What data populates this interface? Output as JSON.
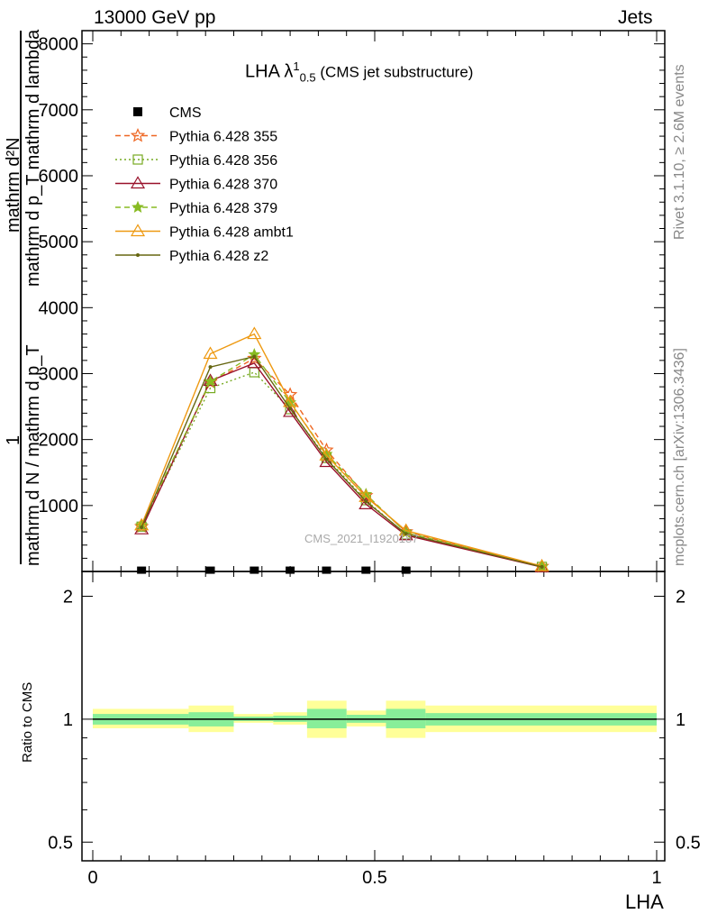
{
  "header": {
    "left": "13000 GeV pp",
    "right": "Jets"
  },
  "side_labels": {
    "rivet": "Rivet 3.1.10, ≥ 2.6M events",
    "mcplots": "mcplots.cern.ch [arXiv:1306.3436]"
  },
  "title": {
    "main": "LHA λ",
    "sup": "1",
    "sub": "0.5",
    "rest": " (CMS jet substructure)"
  },
  "watermark": "CMS_2021_I1920187",
  "y_labels": {
    "main_top": "mathrm d²N",
    "main_top2": "mathrm d p_T mathrm d lambda",
    "main_bottom": "mathrm d N / mathrm d p_T",
    "one": "1",
    "ratio": "Ratio to CMS"
  },
  "x_label": "LHA",
  "chart_data": {
    "type": "line",
    "x": [
      0.0865,
      0.2085,
      0.2865,
      0.35,
      0.4145,
      0.4845,
      0.5555,
      0.7965
    ],
    "xlim": [
      0,
      1
    ],
    "ylim": [
      0,
      8200
    ],
    "yticks": [
      "1000",
      "2000",
      "3000",
      "4000",
      "5000",
      "6000",
      "7000",
      "8000"
    ],
    "ratio_ylim": [
      0.45,
      2.3
    ],
    "ratio_yticks": [
      "0.5",
      "1",
      "2"
    ],
    "xticks": [
      "0",
      "0.5",
      "1"
    ],
    "legend": [
      {
        "name": "CMS"
      },
      {
        "name": "Pythia 6.428 355"
      },
      {
        "name": "Pythia 6.428 356"
      },
      {
        "name": "Pythia 6.428 370"
      },
      {
        "name": "Pythia 6.428 379"
      },
      {
        "name": "Pythia 6.428 ambt1"
      },
      {
        "name": "Pythia 6.428 z2"
      }
    ],
    "cms": {
      "x": [
        0.0865,
        0.2085,
        0.2865,
        0.35,
        0.4145,
        0.4845,
        0.5555
      ],
      "values": [
        6,
        6,
        6,
        6,
        6,
        6,
        6
      ]
    },
    "series": [
      {
        "name": "Pythia 6.428 355",
        "color": "#ee6622",
        "dash": "6,4",
        "marker": "star-open",
        "values": [
          680,
          2870,
          3230,
          2680,
          1840,
          1150,
          600,
          75
        ]
      },
      {
        "name": "Pythia 6.428 356",
        "color": "#77aa22",
        "dash": "2,3",
        "marker": "square-open",
        "values": [
          680,
          2780,
          3020,
          2460,
          1720,
          1080,
          560,
          70
        ]
      },
      {
        "name": "Pythia 6.428 370",
        "color": "#99112a",
        "dash": "",
        "marker": "triangle-open",
        "values": [
          640,
          2890,
          3160,
          2420,
          1660,
          1020,
          550,
          65
        ]
      },
      {
        "name": "Pythia 6.428 379",
        "color": "#88bb22",
        "dash": "6,4",
        "marker": "star-filled",
        "values": [
          700,
          2880,
          3290,
          2560,
          1780,
          1170,
          590,
          75
        ]
      },
      {
        "name": "Pythia 6.428 ambt1",
        "color": "#ee9911",
        "dash": "",
        "marker": "triangle-open",
        "values": [
          700,
          3300,
          3600,
          2570,
          1760,
          1130,
          620,
          80
        ]
      },
      {
        "name": "Pythia 6.428 z2",
        "color": "#666611",
        "dash": "",
        "marker": "dot",
        "values": [
          670,
          3100,
          3260,
          2470,
          1700,
          1060,
          570,
          70
        ]
      }
    ],
    "ratio_bands": {
      "edges": [
        0,
        0.17,
        0.25,
        0.32,
        0.38,
        0.45,
        0.52,
        0.59,
        1.0
      ],
      "yellow_low": [
        0.95,
        0.93,
        0.98,
        0.97,
        0.9,
        0.96,
        0.9,
        0.93
      ],
      "yellow_high": [
        1.06,
        1.08,
        1.03,
        1.04,
        1.11,
        1.05,
        1.11,
        1.08
      ],
      "green_low": [
        0.97,
        0.96,
        0.99,
        0.985,
        0.95,
        0.98,
        0.95,
        0.965
      ],
      "green_high": [
        1.03,
        1.04,
        1.015,
        1.02,
        1.06,
        1.025,
        1.06,
        1.035
      ]
    }
  }
}
